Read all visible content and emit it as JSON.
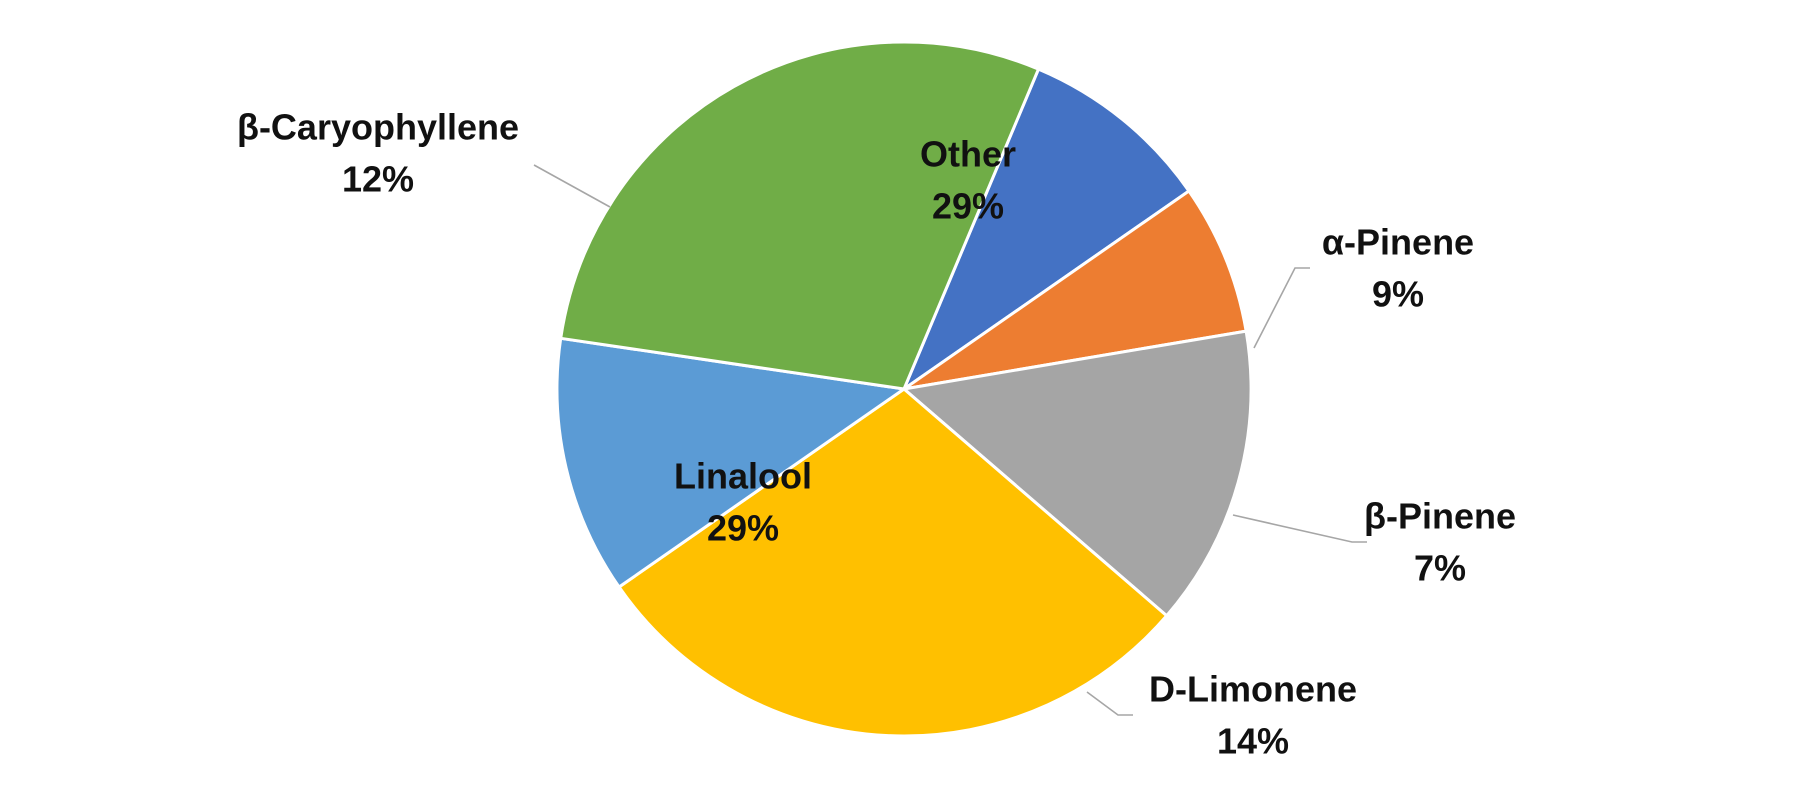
{
  "chart_data": {
    "type": "pie",
    "title": "",
    "start_angle_deg": 67.2,
    "direction": "clockwise",
    "legend": "none",
    "slices": [
      {
        "label": "α-Pinene",
        "value": 9,
        "value_label": "9%",
        "color": "#4472C4",
        "label_position": "outside",
        "leader_line": true
      },
      {
        "label": "β-Pinene",
        "value": 7,
        "value_label": "7%",
        "color": "#ED7D31",
        "label_position": "outside",
        "leader_line": true
      },
      {
        "label": "D-Limonene",
        "value": 14,
        "value_label": "14%",
        "color": "#A5A5A5",
        "label_position": "outside",
        "leader_line": true
      },
      {
        "label": "Linalool",
        "value": 29,
        "value_label": "29%",
        "color": "#FFC000",
        "label_position": "inside",
        "leader_line": false
      },
      {
        "label": "β-Caryophyllene",
        "value": 12,
        "value_label": "12%",
        "color": "#5B9BD5",
        "label_position": "outside",
        "leader_line": true
      },
      {
        "label": "Other",
        "value": 29,
        "value_label": "29%",
        "color": "#70AD47",
        "label_position": "inside",
        "leader_line": false
      }
    ]
  }
}
